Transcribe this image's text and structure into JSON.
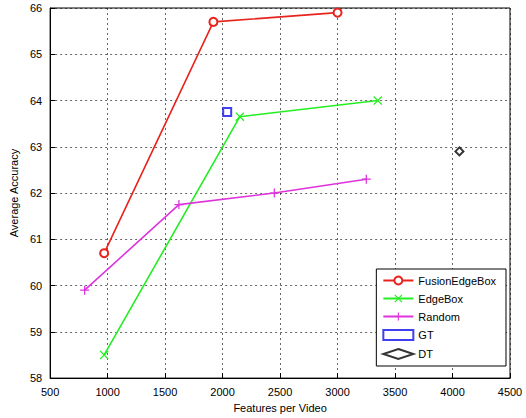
{
  "chart_data": {
    "type": "line",
    "xlabel": "Features per Video",
    "ylabel": "Average Accuracy",
    "xlim": [
      500,
      4500
    ],
    "xticks": [
      500,
      1000,
      1500,
      2000,
      2500,
      3000,
      3500,
      4000,
      4500
    ],
    "ylim": [
      58,
      66
    ],
    "yticks": [
      58,
      59,
      60,
      61,
      62,
      63,
      64,
      65,
      66
    ],
    "grid": true,
    "legend": "lower right",
    "series": [
      {
        "name": "FusionEdgeBox",
        "type": "line",
        "color": "#e8231e",
        "marker": "circle",
        "x": [
          970,
          1920,
          3000
        ],
        "values": [
          60.7,
          65.7,
          65.9
        ]
      },
      {
        "name": "EdgeBox",
        "type": "line",
        "color": "#22ee22",
        "marker": "x",
        "x": [
          970,
          2150,
          3350
        ],
        "values": [
          58.5,
          63.65,
          64.0
        ]
      },
      {
        "name": "Random",
        "type": "line",
        "color": "#dd33dd",
        "marker": "plus",
        "x": [
          800,
          1620,
          2450,
          3250
        ],
        "values": [
          59.9,
          61.75,
          62.0,
          62.3
        ]
      },
      {
        "name": "GT",
        "type": "scatter",
        "color": "#1010ee",
        "marker": "square",
        "x": [
          2040
        ],
        "values": [
          63.75
        ]
      },
      {
        "name": "DT",
        "type": "scatter",
        "color": "#000000",
        "marker": "diamond",
        "x": [
          4060
        ],
        "values": [
          62.9
        ]
      }
    ]
  }
}
